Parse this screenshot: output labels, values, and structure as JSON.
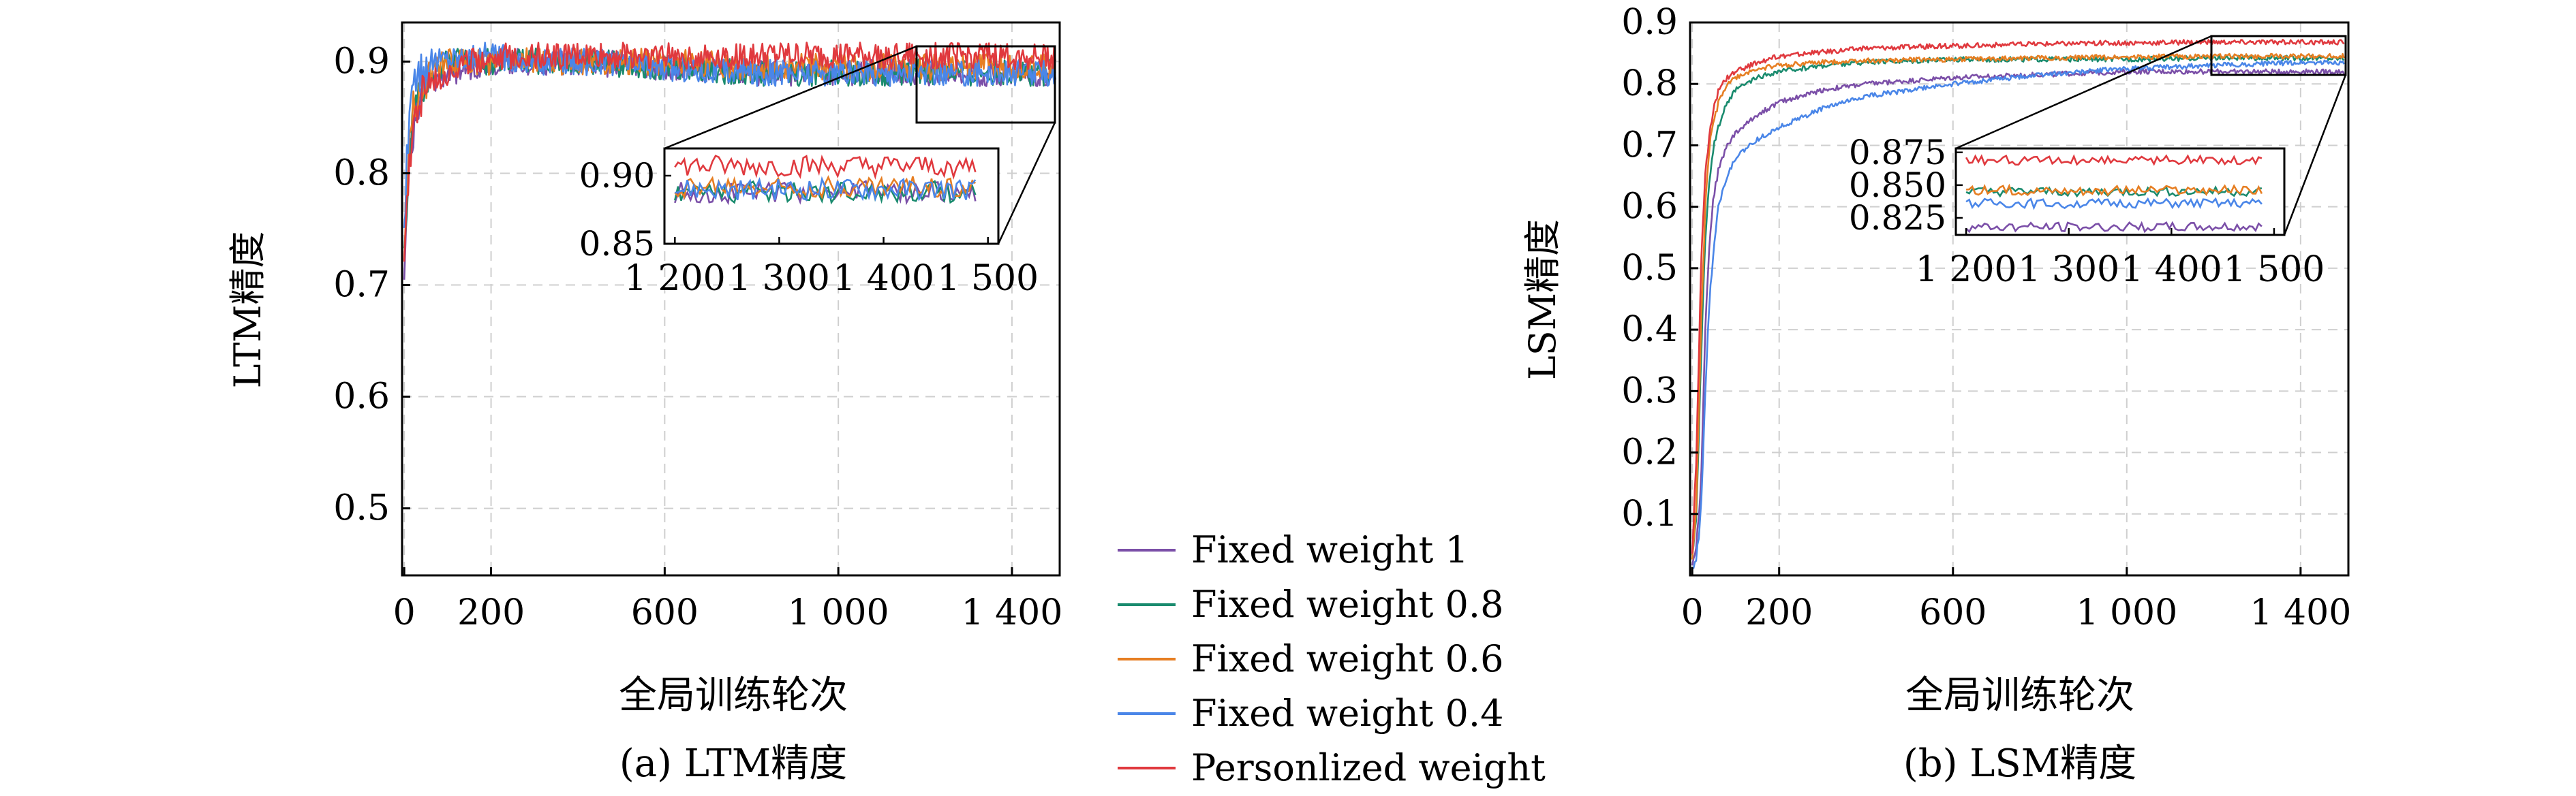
{
  "colors": {
    "Fixed weight 1": "#7b4fa8",
    "Fixed weight 0.8": "#1a8b6e",
    "Fixed weight 0.6": "#e67e22",
    "Fixed weight 0.4": "#4a86e8",
    "Personlized weight": "#e0393e"
  },
  "legend": {
    "placement": "between-panels",
    "entries": [
      "Fixed weight 1",
      "Fixed weight 0.8",
      "Fixed weight 0.6",
      "Fixed weight 0.4",
      "Personlized weight"
    ]
  },
  "chart_data": [
    {
      "type": "line",
      "caption": "(a) LTM精度",
      "xlabel": "全局训练轮次",
      "ylabel": "LTM精度",
      "xlim": [
        -5,
        1510
      ],
      "ylim": [
        0.44,
        0.935
      ],
      "xticks": [
        0,
        200,
        600,
        1000,
        1400
      ],
      "xtick_labels": [
        "0",
        "200",
        "600",
        "1 000",
        "1 400"
      ],
      "yticks": [
        0.5,
        0.6,
        0.7,
        0.8,
        0.9
      ],
      "ytick_labels": [
        "0.5",
        "0.6",
        "0.7",
        "0.8",
        "0.9"
      ],
      "grid": true,
      "x": [
        0,
        5,
        10,
        20,
        40,
        60,
        100,
        150,
        200,
        300,
        400,
        600,
        800,
        1000,
        1200,
        1400,
        1500
      ],
      "series": [
        {
          "name": "Fixed weight 1",
          "values": [
            0.71,
            0.76,
            0.8,
            0.84,
            0.87,
            0.88,
            0.89,
            0.895,
            0.9,
            0.9,
            0.9,
            0.895,
            0.89,
            0.89,
            0.89,
            0.89,
            0.89
          ]
        },
        {
          "name": "Fixed weight 0.8",
          "values": [
            0.72,
            0.77,
            0.81,
            0.85,
            0.88,
            0.89,
            0.9,
            0.9,
            0.9,
            0.9,
            0.9,
            0.895,
            0.89,
            0.89,
            0.89,
            0.89,
            0.89
          ]
        },
        {
          "name": "Fixed weight 0.6",
          "values": [
            0.73,
            0.78,
            0.82,
            0.86,
            0.88,
            0.89,
            0.9,
            0.9,
            0.9,
            0.9,
            0.9,
            0.9,
            0.895,
            0.895,
            0.895,
            0.895,
            0.895
          ]
        },
        {
          "name": "Fixed weight 0.4",
          "values": [
            0.74,
            0.8,
            0.84,
            0.87,
            0.89,
            0.9,
            0.905,
            0.905,
            0.905,
            0.9,
            0.9,
            0.895,
            0.89,
            0.89,
            0.89,
            0.89,
            0.89
          ]
        },
        {
          "name": "Personlized weight",
          "values": [
            0.73,
            0.78,
            0.8,
            0.84,
            0.87,
            0.88,
            0.89,
            0.9,
            0.905,
            0.905,
            0.905,
            0.905,
            0.905,
            0.905,
            0.905,
            0.905,
            0.905
          ]
        }
      ],
      "noise": 0.012,
      "inset": {
        "xlim": [
          1190,
          1510
        ],
        "ylim": [
          0.85,
          0.92
        ],
        "xticks": [
          1200,
          1300,
          1400,
          1500
        ],
        "xtick_labels": [
          "1 200",
          "1 300",
          "1 400",
          "1 500"
        ],
        "yticks": [
          0.85,
          0.9
        ],
        "ytick_labels": [
          "0.85",
          "0.90"
        ],
        "series_levels": [
          0.888,
          0.888,
          0.892,
          0.89,
          0.907
        ],
        "noise": 0.008
      }
    },
    {
      "type": "line",
      "caption": "(b) LSM精度",
      "xlabel": "全局训练轮次",
      "ylabel": "LSM精度",
      "xlim": [
        -5,
        1510
      ],
      "ylim": [
        0,
        0.9
      ],
      "xticks": [
        0,
        200,
        600,
        1000,
        1400
      ],
      "xtick_labels": [
        "0",
        "200",
        "600",
        "1 000",
        "1 400"
      ],
      "yticks": [
        0.1,
        0.2,
        0.3,
        0.4,
        0.5,
        0.6,
        0.7,
        0.8,
        0.9
      ],
      "ytick_labels": [
        "0.1",
        "0.2",
        "0.3",
        "0.4",
        "0.5",
        "0.6",
        "0.7",
        "0.8",
        "0.9"
      ],
      "grid": true,
      "x": [
        0,
        10,
        20,
        30,
        40,
        50,
        60,
        80,
        100,
        150,
        200,
        300,
        400,
        600,
        800,
        1000,
        1200,
        1400,
        1500
      ],
      "series": [
        {
          "name": "Fixed weight 1",
          "values": [
            0.02,
            0.05,
            0.15,
            0.4,
            0.55,
            0.62,
            0.66,
            0.7,
            0.72,
            0.75,
            0.77,
            0.79,
            0.8,
            0.81,
            0.815,
            0.82,
            0.82,
            0.82,
            0.82
          ]
        },
        {
          "name": "Fixed weight 0.8",
          "values": [
            0.03,
            0.1,
            0.35,
            0.55,
            0.65,
            0.7,
            0.73,
            0.77,
            0.79,
            0.81,
            0.82,
            0.83,
            0.835,
            0.84,
            0.84,
            0.84,
            0.842,
            0.842,
            0.842
          ]
        },
        {
          "name": "Fixed weight 0.6",
          "values": [
            0.03,
            0.12,
            0.4,
            0.6,
            0.7,
            0.74,
            0.77,
            0.8,
            0.81,
            0.825,
            0.83,
            0.835,
            0.838,
            0.84,
            0.842,
            0.844,
            0.845,
            0.845,
            0.845
          ]
        },
        {
          "name": "Fixed weight 0.4",
          "values": [
            0.01,
            0.03,
            0.1,
            0.3,
            0.45,
            0.54,
            0.6,
            0.65,
            0.68,
            0.71,
            0.73,
            0.76,
            0.78,
            0.8,
            0.815,
            0.825,
            0.83,
            0.835,
            0.835
          ]
        },
        {
          "name": "Personlized weight",
          "values": [
            0.04,
            0.2,
            0.5,
            0.65,
            0.72,
            0.76,
            0.79,
            0.81,
            0.82,
            0.835,
            0.845,
            0.852,
            0.858,
            0.862,
            0.865,
            0.867,
            0.868,
            0.868,
            0.868
          ]
        }
      ],
      "noise": 0.004,
      "inset": {
        "xlim": [
          1190,
          1510
        ],
        "ylim": [
          0.812,
          0.878
        ],
        "xticks": [
          1200,
          1300,
          1400,
          1500
        ],
        "xtick_labels": [
          "1 200",
          "1 300",
          "1 400",
          "1 500"
        ],
        "yticks": [
          0.825,
          0.85,
          0.875
        ],
        "ytick_labels": [
          "0.825",
          "0.850",
          "0.875"
        ],
        "series_levels": [
          0.818,
          0.845,
          0.846,
          0.836,
          0.869
        ],
        "noise": 0.0035
      }
    }
  ]
}
